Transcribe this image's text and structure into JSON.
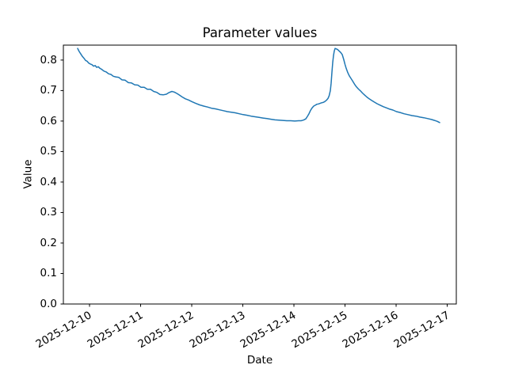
{
  "chart_data": {
    "type": "line",
    "title": "Parameter values",
    "xlabel": "Date",
    "ylabel": "Value",
    "x_unit": "days since 2025-12-10",
    "xlim": [
      -0.512,
      7.178
    ],
    "ylim": [
      0.0,
      0.849
    ],
    "grid": false,
    "legend": false,
    "x_tick_positions": [
      0,
      1,
      2,
      3,
      4,
      5,
      6,
      7
    ],
    "x_tick_labels": [
      "2025-12-10",
      "2025-12-11",
      "2025-12-12",
      "2025-12-13",
      "2025-12-14",
      "2025-12-15",
      "2025-12-16",
      "2025-12-17"
    ],
    "x_tick_rotation_deg": 30,
    "y_tick_positions": [
      0.0,
      0.1,
      0.2,
      0.3,
      0.4,
      0.5,
      0.6,
      0.7,
      0.8
    ],
    "y_tick_labels": [
      "0.0",
      "0.1",
      "0.2",
      "0.3",
      "0.4",
      "0.5",
      "0.6",
      "0.7",
      "0.8"
    ],
    "series": [
      {
        "color": "#1f77b4",
        "line_width": 1.5,
        "points": [
          [
            -0.233,
            0.838
          ],
          [
            -0.202,
            0.828
          ],
          [
            -0.171,
            0.82
          ],
          [
            -0.14,
            0.812
          ],
          [
            -0.109,
            0.806
          ],
          [
            -0.078,
            0.799
          ],
          [
            -0.047,
            0.796
          ],
          [
            -0.016,
            0.79
          ],
          [
            0.016,
            0.787
          ],
          [
            0.047,
            0.785
          ],
          [
            0.078,
            0.78
          ],
          [
            0.109,
            0.782
          ],
          [
            0.14,
            0.776
          ],
          [
            0.171,
            0.778
          ],
          [
            0.202,
            0.773
          ],
          [
            0.233,
            0.77
          ],
          [
            0.279,
            0.764
          ],
          [
            0.326,
            0.761
          ],
          [
            0.372,
            0.755
          ],
          [
            0.419,
            0.753
          ],
          [
            0.465,
            0.747
          ],
          [
            0.512,
            0.745
          ],
          [
            0.574,
            0.743
          ],
          [
            0.636,
            0.735
          ],
          [
            0.698,
            0.734
          ],
          [
            0.76,
            0.726
          ],
          [
            0.822,
            0.725
          ],
          [
            0.884,
            0.719
          ],
          [
            0.946,
            0.718
          ],
          [
            1.008,
            0.711
          ],
          [
            1.07,
            0.711
          ],
          [
            1.132,
            0.704
          ],
          [
            1.194,
            0.704
          ],
          [
            1.256,
            0.697
          ],
          [
            1.318,
            0.694
          ],
          [
            1.38,
            0.687
          ],
          [
            1.442,
            0.686
          ],
          [
            1.504,
            0.688
          ],
          [
            1.55,
            0.693
          ],
          [
            1.612,
            0.697
          ],
          [
            1.659,
            0.695
          ],
          [
            1.705,
            0.691
          ],
          [
            1.752,
            0.686
          ],
          [
            1.814,
            0.679
          ],
          [
            1.876,
            0.673
          ],
          [
            1.938,
            0.669
          ],
          [
            2.0,
            0.664
          ],
          [
            2.078,
            0.658
          ],
          [
            2.155,
            0.653
          ],
          [
            2.233,
            0.649
          ],
          [
            2.31,
            0.646
          ],
          [
            2.388,
            0.642
          ],
          [
            2.465,
            0.64
          ],
          [
            2.543,
            0.637
          ],
          [
            2.62,
            0.634
          ],
          [
            2.698,
            0.631
          ],
          [
            2.775,
            0.629
          ],
          [
            2.853,
            0.627
          ],
          [
            2.93,
            0.624
          ],
          [
            3.008,
            0.621
          ],
          [
            3.085,
            0.619
          ],
          [
            3.163,
            0.616
          ],
          [
            3.24,
            0.614
          ],
          [
            3.318,
            0.612
          ],
          [
            3.395,
            0.61
          ],
          [
            3.473,
            0.608
          ],
          [
            3.55,
            0.606
          ],
          [
            3.628,
            0.604
          ],
          [
            3.705,
            0.603
          ],
          [
            3.783,
            0.602
          ],
          [
            3.86,
            0.601
          ],
          [
            3.938,
            0.601
          ],
          [
            4.016,
            0.6
          ],
          [
            4.093,
            0.601
          ],
          [
            4.14,
            0.601
          ],
          [
            4.186,
            0.603
          ],
          [
            4.233,
            0.607
          ],
          [
            4.264,
            0.615
          ],
          [
            4.295,
            0.624
          ],
          [
            4.326,
            0.635
          ],
          [
            4.357,
            0.643
          ],
          [
            4.388,
            0.649
          ],
          [
            4.419,
            0.652
          ],
          [
            4.45,
            0.655
          ],
          [
            4.481,
            0.656
          ],
          [
            4.512,
            0.658
          ],
          [
            4.543,
            0.66
          ],
          [
            4.574,
            0.661
          ],
          [
            4.605,
            0.664
          ],
          [
            4.636,
            0.668
          ],
          [
            4.667,
            0.674
          ],
          [
            4.69,
            0.683
          ],
          [
            4.713,
            0.7
          ],
          [
            4.729,
            0.724
          ],
          [
            4.744,
            0.76
          ],
          [
            4.76,
            0.792
          ],
          [
            4.775,
            0.815
          ],
          [
            4.79,
            0.83
          ],
          [
            4.806,
            0.838
          ],
          [
            4.822,
            0.837
          ],
          [
            4.853,
            0.835
          ],
          [
            4.884,
            0.83
          ],
          [
            4.915,
            0.825
          ],
          [
            4.946,
            0.818
          ],
          [
            4.977,
            0.801
          ],
          [
            5.0,
            0.786
          ],
          [
            5.023,
            0.773
          ],
          [
            5.054,
            0.759
          ],
          [
            5.085,
            0.748
          ],
          [
            5.116,
            0.74
          ],
          [
            5.147,
            0.732
          ],
          [
            5.186,
            0.721
          ],
          [
            5.225,
            0.712
          ],
          [
            5.264,
            0.705
          ],
          [
            5.302,
            0.699
          ],
          [
            5.341,
            0.692
          ],
          [
            5.38,
            0.686
          ],
          [
            5.426,
            0.679
          ],
          [
            5.473,
            0.673
          ],
          [
            5.519,
            0.668
          ],
          [
            5.566,
            0.663
          ],
          [
            5.628,
            0.657
          ],
          [
            5.69,
            0.652
          ],
          [
            5.752,
            0.647
          ],
          [
            5.814,
            0.643
          ],
          [
            5.876,
            0.639
          ],
          [
            5.938,
            0.636
          ],
          [
            6.008,
            0.631
          ],
          [
            6.078,
            0.628
          ],
          [
            6.155,
            0.624
          ],
          [
            6.233,
            0.621
          ],
          [
            6.31,
            0.618
          ],
          [
            6.388,
            0.616
          ],
          [
            6.465,
            0.613
          ],
          [
            6.543,
            0.611
          ],
          [
            6.62,
            0.608
          ],
          [
            6.698,
            0.605
          ],
          [
            6.752,
            0.602
          ],
          [
            6.806,
            0.599
          ],
          [
            6.853,
            0.595
          ]
        ]
      }
    ]
  }
}
